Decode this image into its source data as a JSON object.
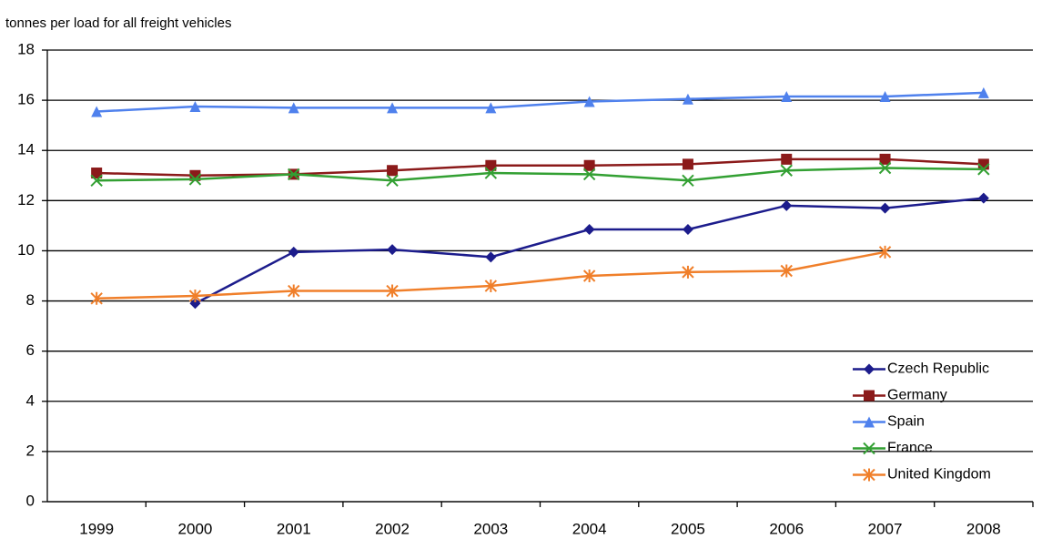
{
  "chart_data": {
    "type": "line",
    "ylabel": "tonnes per load for all freight vehicles",
    "categories": [
      "1999",
      "2000",
      "2001",
      "2002",
      "2003",
      "2004",
      "2005",
      "2006",
      "2007",
      "2008"
    ],
    "series": [
      {
        "name": "Czech Republic",
        "color": "#1c1c8c",
        "marker": "diamond",
        "values": [
          null,
          7.9,
          9.95,
          10.05,
          9.75,
          10.85,
          10.85,
          11.8,
          11.7,
          12.1
        ]
      },
      {
        "name": "Germany",
        "color": "#8b1a1a",
        "marker": "square",
        "values": [
          13.1,
          13.0,
          13.05,
          13.2,
          13.4,
          13.4,
          13.45,
          13.65,
          13.65,
          13.45
        ]
      },
      {
        "name": "Spain",
        "color": "#4f81ed",
        "marker": "triangle",
        "values": [
          15.55,
          15.75,
          15.7,
          15.7,
          15.7,
          15.95,
          16.05,
          16.15,
          16.15,
          16.3
        ]
      },
      {
        "name": "France",
        "color": "#33a033",
        "marker": "x",
        "values": [
          12.8,
          12.85,
          13.05,
          12.8,
          13.1,
          13.05,
          12.8,
          13.2,
          13.3,
          13.25
        ]
      },
      {
        "name": "United Kingdom",
        "color": "#f07f2a",
        "marker": "asterisk",
        "values": [
          8.1,
          8.2,
          8.4,
          8.4,
          8.6,
          9.0,
          9.15,
          9.2,
          9.95,
          null
        ]
      }
    ],
    "ylim": [
      0,
      18
    ],
    "yticks": [
      0,
      2,
      4,
      6,
      8,
      10,
      12,
      14,
      16,
      18
    ],
    "grid": true,
    "legend": "lower right"
  }
}
